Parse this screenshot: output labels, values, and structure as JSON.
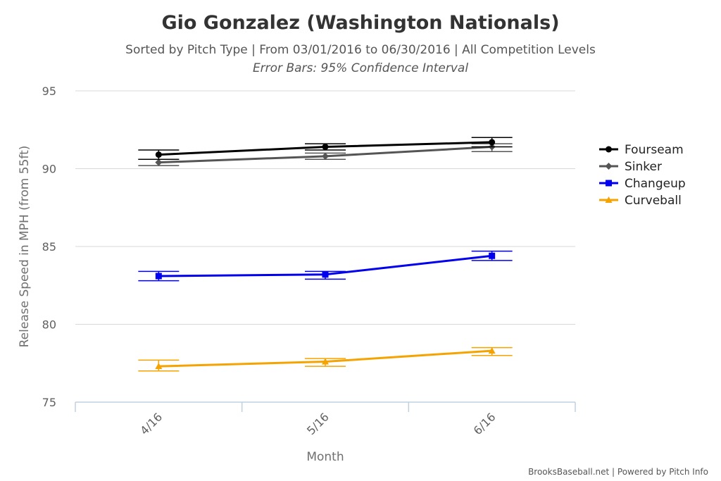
{
  "chart_data": {
    "type": "line",
    "title": "Gio Gonzalez (Washington Nationals)",
    "subtitle": "Sorted by Pitch Type | From 03/01/2016 to 06/30/2016 | All Competition Levels",
    "subtitle2": "Error Bars: 95% Confidence Interval",
    "xlabel": "Month",
    "ylabel": "Release Speed in MPH (from 55ft)",
    "categories": [
      "4/16",
      "5/16",
      "6/16"
    ],
    "ylim": [
      75,
      95
    ],
    "yticks": [
      75,
      80,
      85,
      90,
      95
    ],
    "grid": true,
    "legend_position": "right",
    "credits": "BrooksBaseball.net | Powered by Pitch Info",
    "series": [
      {
        "name": "Fourseam",
        "color": "#000000",
        "marker": "circle",
        "values": [
          90.9,
          91.4,
          91.7
        ],
        "error_low": [
          90.6,
          91.2,
          91.4
        ],
        "error_high": [
          91.2,
          91.6,
          92.0
        ]
      },
      {
        "name": "Sinker",
        "color": "#555555",
        "marker": "diamond",
        "values": [
          90.4,
          90.8,
          91.4
        ],
        "error_low": [
          90.2,
          90.6,
          91.1
        ],
        "error_high": [
          90.6,
          91.0,
          91.6
        ]
      },
      {
        "name": "Changeup",
        "color": "#0000ee",
        "marker": "square",
        "values": [
          83.1,
          83.2,
          84.4
        ],
        "error_low": [
          82.8,
          82.9,
          84.1
        ],
        "error_high": [
          83.4,
          83.4,
          84.7
        ]
      },
      {
        "name": "Curveball",
        "color": "#f5a300",
        "marker": "triangle",
        "values": [
          77.3,
          77.6,
          78.3
        ],
        "error_low": [
          77.0,
          77.3,
          78.0
        ],
        "error_high": [
          77.7,
          77.8,
          78.5
        ]
      }
    ]
  }
}
